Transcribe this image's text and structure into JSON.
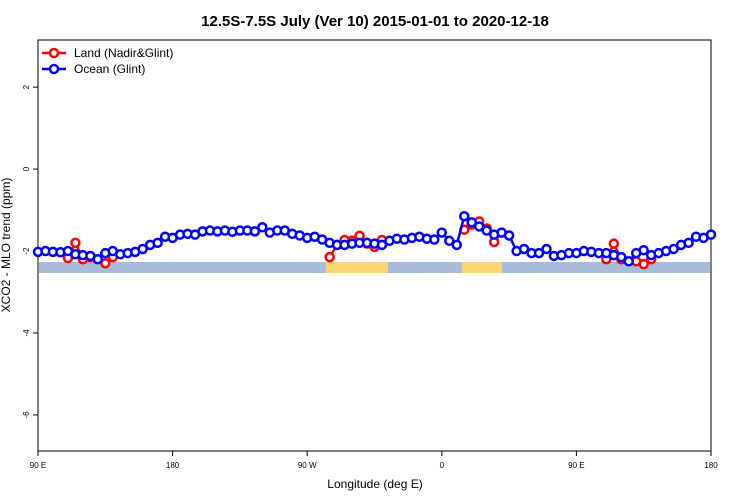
{
  "chart_data": {
    "type": "line",
    "title": "12.5S-7.5S July (Ver 10)   2015-01-01 to 2020-12-18",
    "x_label": "Longitude (deg E)",
    "y_label": "XCO2 - MLO trend (ppm)",
    "xlim": [
      90,
      540
    ],
    "xticks": [
      {
        "value": 90,
        "label": "90 E"
      },
      180,
      {
        "value": 270,
        "label": "90 W"
      },
      {
        "value": 360,
        "label": "0"
      },
      {
        "value": 450,
        "label": "90 E"
      },
      {
        "value": 540,
        "label": "180"
      }
    ],
    "ylim": [
      -6.88,
      3.15
    ],
    "yticks": [
      -6,
      -4,
      -2,
      0,
      2
    ],
    "legend": "top-left",
    "series": [
      {
        "name": "Land (Nadir&Glint)",
        "color": "#ff0000",
        "x": [
          110,
          115,
          120,
          125,
          135,
          140,
          null,
          285,
          290,
          295,
          300,
          305,
          310,
          315,
          320,
          null,
          375,
          380,
          385,
          390,
          395,
          400,
          null,
          470,
          475,
          480,
          490,
          495,
          500
        ],
        "values": [
          -2.17,
          -1.8,
          -2.2,
          -2.15,
          -2.3,
          -2.15,
          null,
          -2.15,
          -1.85,
          -1.73,
          -1.75,
          -1.63,
          -1.82,
          -1.9,
          -1.73,
          null,
          -1.48,
          -1.35,
          -1.28,
          -1.45,
          -1.78,
          -1.55,
          null,
          -2.2,
          -1.82,
          -2.2,
          -2.25,
          -2.32,
          -2.2
        ]
      },
      {
        "name": "Ocean (Glint)",
        "color": "#0000ff",
        "x": [
          90,
          95,
          100,
          105,
          110,
          115,
          120,
          125,
          130,
          135,
          140,
          145,
          150,
          155,
          160,
          165,
          170,
          175,
          180,
          185,
          190,
          195,
          200,
          205,
          210,
          215,
          220,
          225,
          230,
          235,
          240,
          245,
          250,
          255,
          260,
          265,
          270,
          275,
          280,
          285,
          290,
          295,
          300,
          305,
          310,
          315,
          320,
          325,
          330,
          335,
          340,
          345,
          350,
          355,
          360,
          365,
          370,
          375,
          380,
          385,
          390,
          395,
          400,
          405,
          410,
          415,
          420,
          425,
          430,
          435,
          440,
          445,
          450,
          455,
          460,
          465,
          470,
          475,
          480,
          485,
          490,
          495,
          500,
          505,
          510,
          515,
          520,
          525,
          530,
          535,
          540
        ],
        "values": [
          -2.02,
          -2.0,
          -2.02,
          -2.03,
          -2.0,
          -2.08,
          -2.1,
          -2.12,
          -2.2,
          -2.05,
          -2.0,
          -2.08,
          -2.05,
          -2.02,
          -1.95,
          -1.85,
          -1.8,
          -1.65,
          -1.68,
          -1.6,
          -1.58,
          -1.6,
          -1.52,
          -1.5,
          -1.52,
          -1.5,
          -1.53,
          -1.5,
          -1.5,
          -1.52,
          -1.42,
          -1.55,
          -1.5,
          -1.5,
          -1.58,
          -1.62,
          -1.68,
          -1.65,
          -1.72,
          -1.8,
          -1.85,
          -1.85,
          -1.82,
          -1.8,
          -1.8,
          -1.82,
          -1.85,
          -1.75,
          -1.7,
          -1.72,
          -1.68,
          -1.65,
          -1.7,
          -1.72,
          -1.55,
          -1.75,
          -1.85,
          -1.15,
          -1.3,
          -1.4,
          -1.5,
          -1.6,
          -1.55,
          -1.62,
          -2.0,
          -1.95,
          -2.05,
          -2.05,
          -1.95,
          -2.12,
          -2.1,
          -2.05,
          -2.05,
          -2.0,
          -2.02,
          -2.05,
          -2.05,
          -2.1,
          -2.15,
          -2.25,
          -2.05,
          -1.98,
          -2.1,
          -2.05,
          -2.0,
          -1.95,
          -1.85,
          -1.8,
          -1.65,
          -1.68,
          -1.6
        ]
      }
    ]
  }
}
